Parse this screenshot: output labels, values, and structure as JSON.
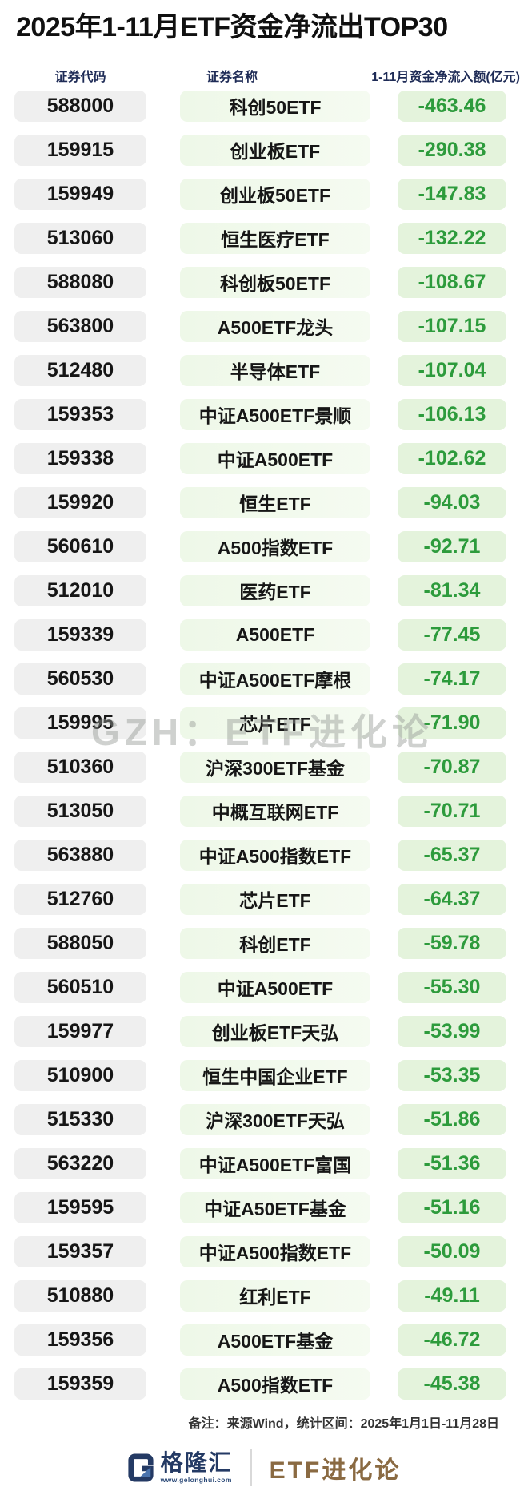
{
  "title": "2025年1-11月ETF资金净流出TOP30",
  "table": {
    "headers": [
      "证券代码",
      "证券名称",
      "1-11月资金净流入额(亿元)"
    ],
    "rows": [
      {
        "code": "588000",
        "name": "科创50ETF",
        "value": "-463.46"
      },
      {
        "code": "159915",
        "name": "创业板ETF",
        "value": "-290.38"
      },
      {
        "code": "159949",
        "name": "创业板50ETF",
        "value": "-147.83"
      },
      {
        "code": "513060",
        "name": "恒生医疗ETF",
        "value": "-132.22"
      },
      {
        "code": "588080",
        "name": "科创板50ETF",
        "value": "-108.67"
      },
      {
        "code": "563800",
        "name": "A500ETF龙头",
        "value": "-107.15"
      },
      {
        "code": "512480",
        "name": "半导体ETF",
        "value": "-107.04"
      },
      {
        "code": "159353",
        "name": "中证A500ETF景顺",
        "value": "-106.13"
      },
      {
        "code": "159338",
        "name": "中证A500ETF",
        "value": "-102.62"
      },
      {
        "code": "159920",
        "name": "恒生ETF",
        "value": "-94.03"
      },
      {
        "code": "560610",
        "name": "A500指数ETF",
        "value": "-92.71"
      },
      {
        "code": "512010",
        "name": "医药ETF",
        "value": "-81.34"
      },
      {
        "code": "159339",
        "name": "A500ETF",
        "value": "-77.45"
      },
      {
        "code": "560530",
        "name": "中证A500ETF摩根",
        "value": "-74.17"
      },
      {
        "code": "159995",
        "name": "芯片ETF",
        "value": "-71.90"
      },
      {
        "code": "510360",
        "name": "沪深300ETF基金",
        "value": "-70.87"
      },
      {
        "code": "513050",
        "name": "中概互联网ETF",
        "value": "-70.71"
      },
      {
        "code": "563880",
        "name": "中证A500指数ETF",
        "value": "-65.37"
      },
      {
        "code": "512760",
        "name": "芯片ETF",
        "value": "-64.37"
      },
      {
        "code": "588050",
        "name": "科创ETF",
        "value": "-59.78"
      },
      {
        "code": "560510",
        "name": "中证A500ETF",
        "value": "-55.30"
      },
      {
        "code": "159977",
        "name": "创业板ETF天弘",
        "value": "-53.99"
      },
      {
        "code": "510900",
        "name": "恒生中国企业ETF",
        "value": "-53.35"
      },
      {
        "code": "515330",
        "name": "沪深300ETF天弘",
        "value": "-51.86"
      },
      {
        "code": "563220",
        "name": "中证A500ETF富国",
        "value": "-51.36"
      },
      {
        "code": "159595",
        "name": "中证A50ETF基金",
        "value": "-51.16"
      },
      {
        "code": "159357",
        "name": "中证A500指数ETF",
        "value": "-50.09"
      },
      {
        "code": "510880",
        "name": "红利ETF",
        "value": "-49.11"
      },
      {
        "code": "159356",
        "name": "A500ETF基金",
        "value": "-46.72"
      },
      {
        "code": "159359",
        "name": "A500指数ETF",
        "value": "-45.38"
      }
    ]
  },
  "watermark": "GZH：ETF进化论",
  "footer": {
    "note": "备注：来源Wind，统计区间：2025年1月1日-11月28日",
    "brand_name": "格隆汇",
    "brand_url": "www.gelonghui.com",
    "brand_account": "ETF进化论"
  },
  "colors": {
    "value_green": "#2d9b3c",
    "value_bg": "#e4f3dc",
    "name_bg": "#f0f9ec",
    "code_bg": "#efefef",
    "header_navy": "#1e2b56",
    "brand_navy": "#243a64",
    "brand_blue": "#4a73ad",
    "brand_bronze": "#8a6a42"
  }
}
